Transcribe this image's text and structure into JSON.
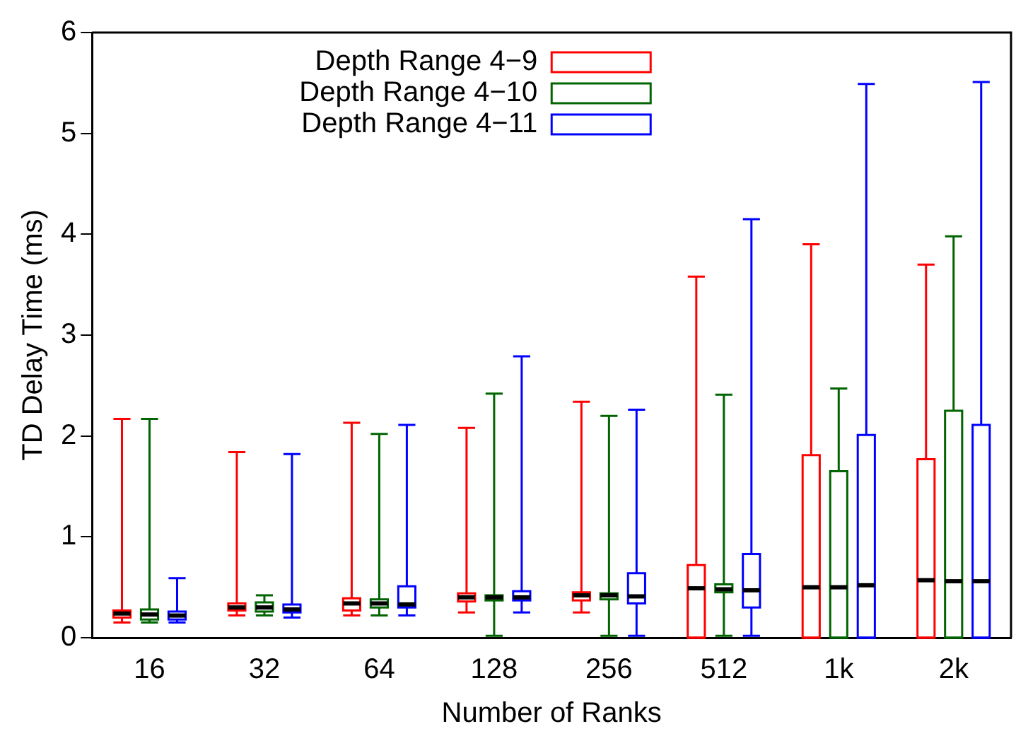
{
  "chart_data": {
    "type": "box",
    "xlabel": "Number of Ranks",
    "ylabel": "TD Delay Time (ms)",
    "categories": [
      "16",
      "32",
      "64",
      "128",
      "256",
      "512",
      "1k",
      "2k"
    ],
    "ylim": [
      0,
      6
    ],
    "yticks": [
      0,
      1,
      2,
      3,
      4,
      5,
      6
    ],
    "grid": false,
    "legend": "top left",
    "series": [
      {
        "name": "Depth Range 4−9",
        "color": "#ff0000",
        "boxes": [
          {
            "low": 0.15,
            "q1": 0.2,
            "median": 0.24,
            "q3": 0.27,
            "high": 2.17
          },
          {
            "low": 0.22,
            "q1": 0.27,
            "median": 0.3,
            "q3": 0.34,
            "high": 1.84
          },
          {
            "low": 0.22,
            "q1": 0.27,
            "median": 0.34,
            "q3": 0.39,
            "high": 2.13
          },
          {
            "low": 0.25,
            "q1": 0.36,
            "median": 0.4,
            "q3": 0.44,
            "high": 2.08
          },
          {
            "low": 0.25,
            "q1": 0.37,
            "median": 0.42,
            "q3": 0.45,
            "high": 2.34
          },
          {
            "low": 0,
            "q1": 0,
            "median": 0.49,
            "q3": 0.72,
            "high": 3.58
          },
          {
            "low": 0,
            "q1": 0,
            "median": 0.5,
            "q3": 1.81,
            "high": 3.9
          },
          {
            "low": 0,
            "q1": 0,
            "median": 0.57,
            "q3": 1.77,
            "high": 3.7
          }
        ]
      },
      {
        "name": "Depth Range 4−10",
        "color": "#006400",
        "boxes": [
          {
            "low": 0.15,
            "q1": 0.18,
            "median": 0.23,
            "q3": 0.28,
            "high": 2.17
          },
          {
            "low": 0.22,
            "q1": 0.26,
            "median": 0.3,
            "q3": 0.35,
            "high": 0.42
          },
          {
            "low": 0.22,
            "q1": 0.3,
            "median": 0.34,
            "q3": 0.38,
            "high": 2.02
          },
          {
            "low": 0.02,
            "q1": 0.37,
            "median": 0.4,
            "q3": 0.42,
            "high": 2.42
          },
          {
            "low": 0.02,
            "q1": 0.38,
            "median": 0.42,
            "q3": 0.44,
            "high": 2.2
          },
          {
            "low": 0.02,
            "q1": 0.45,
            "median": 0.48,
            "q3": 0.53,
            "high": 2.41
          },
          {
            "low": 0,
            "q1": 0,
            "median": 0.5,
            "q3": 1.65,
            "high": 2.47
          },
          {
            "low": 0,
            "q1": 0,
            "median": 0.56,
            "q3": 2.25,
            "high": 3.98
          }
        ]
      },
      {
        "name": "Depth Range 4−11",
        "color": "#0000ff",
        "boxes": [
          {
            "low": 0.15,
            "q1": 0.18,
            "median": 0.22,
            "q3": 0.26,
            "high": 0.59
          },
          {
            "low": 0.2,
            "q1": 0.25,
            "median": 0.28,
            "q3": 0.33,
            "high": 1.82
          },
          {
            "low": 0.22,
            "q1": 0.3,
            "median": 0.33,
            "q3": 0.51,
            "high": 2.11
          },
          {
            "low": 0.25,
            "q1": 0.37,
            "median": 0.4,
            "q3": 0.46,
            "high": 2.79
          },
          {
            "low": 0.02,
            "q1": 0.34,
            "median": 0.41,
            "q3": 0.64,
            "high": 2.26
          },
          {
            "low": 0.02,
            "q1": 0.3,
            "median": 0.47,
            "q3": 0.83,
            "high": 4.15
          },
          {
            "low": 0,
            "q1": 0,
            "median": 0.52,
            "q3": 2.01,
            "high": 5.49
          },
          {
            "low": 0,
            "q1": 0,
            "median": 0.56,
            "q3": 2.11,
            "high": 5.51
          }
        ]
      }
    ]
  }
}
